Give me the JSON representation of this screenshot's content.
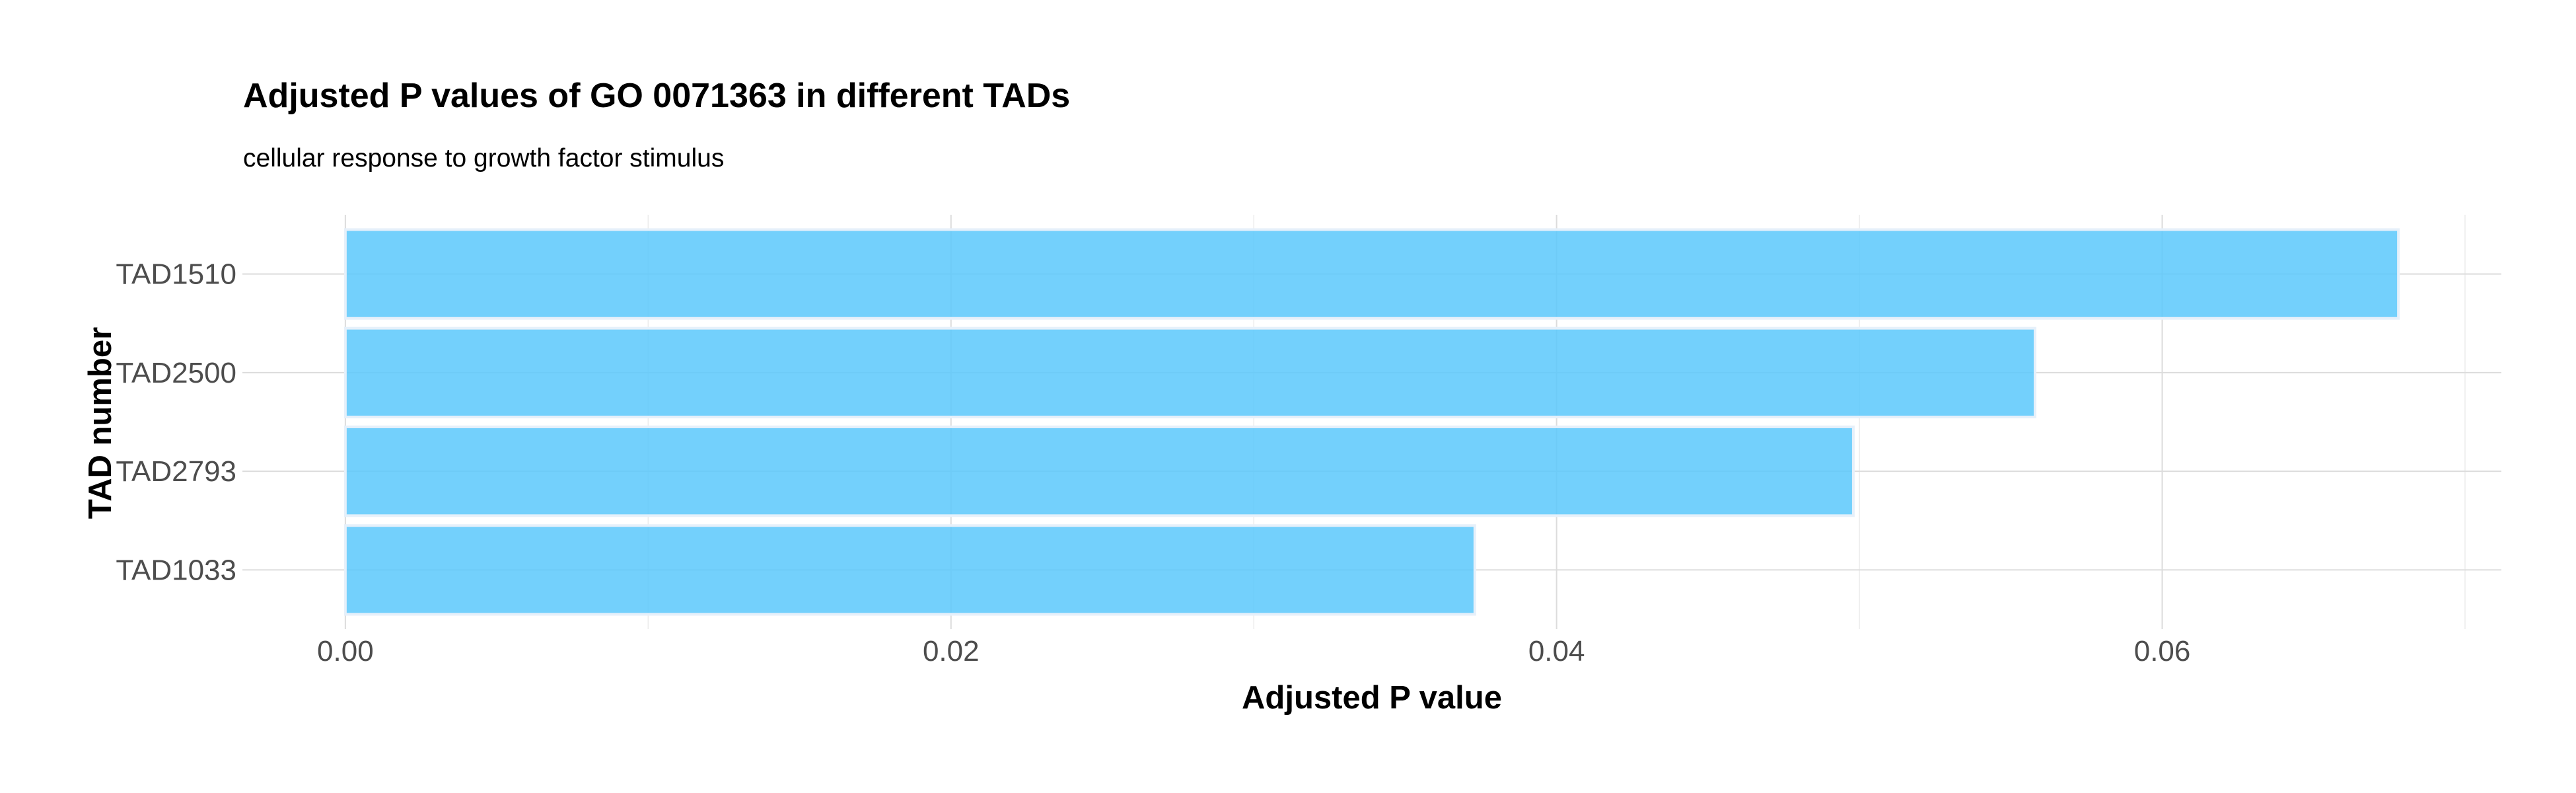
{
  "chart_data": {
    "type": "bar",
    "orientation": "horizontal",
    "title": "Adjusted P values of GO 0071363 in different TADs",
    "subtitle": "cellular response to growth factor stimulus",
    "xlabel": "Adjusted P value",
    "ylabel": "TAD number",
    "categories": [
      "TAD1510",
      "TAD2500",
      "TAD2793",
      "TAD1033"
    ],
    "values": [
      0.0678,
      0.0558,
      0.0498,
      0.0373
    ],
    "xlim": [
      -0.0034,
      0.0712
    ],
    "xticks": [
      0.0,
      0.02,
      0.04,
      0.06
    ],
    "xtick_labels": [
      "0.00",
      "0.02",
      "0.04",
      "0.06"
    ],
    "grid": true,
    "legend": "none",
    "colors": {
      "bar_fill": "#5bc8fb",
      "bar_outline": "#e6f0fa"
    }
  }
}
